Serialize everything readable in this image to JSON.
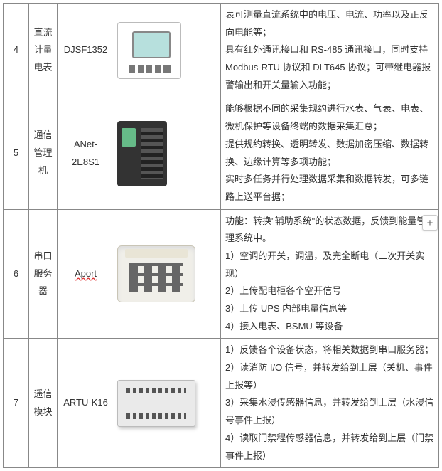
{
  "rows": [
    {
      "num": "4",
      "name": "直流计量电表",
      "model": "DJSF1352",
      "model_spellcheck": false,
      "desc": "表可测量直流系统中的电压、电流、功率以及正反向电能等；\n具有红外通讯接口和 RS-485 通讯接口，同时支持 Modbus-RTU 协议和 DLT645 协议；可带继电器报警输出和开关量输入功能；"
    },
    {
      "num": "5",
      "name": "通信管理机",
      "model": "ANet-2E8S1",
      "model_spellcheck": false,
      "desc": "能够根据不同的采集规约进行水表、气表、电表、微机保护等设备终端的数据采集汇总；\n提供规约转换、透明转发、数据加密压缩、数据转换、边缘计算等多项功能；\n实时多任务并行处理数据采集和数据转发，可多链路上送平台据；"
    },
    {
      "num": "6",
      "name": "串口服务器",
      "model": "Aport",
      "model_spellcheck": true,
      "desc": "功能：转换\"辅助系统\"的状态数据，反馈到能量管理系统中。\n1）空调的开关，调温，及完全断电（二次开关实现）\n2）上传配电柜各个空开信号\n3）上传 UPS 内部电量信息等\n4）接入电表、BSMU 等设备"
    },
    {
      "num": "7",
      "name": "遥信模块",
      "model": "ARTU-K16",
      "model_spellcheck": false,
      "desc": "1）反馈各个设备状态，将相关数据到串口服务器；\n2）读消防 I/O 信号，并转发给到上层（关机、事件上报等）\n3）采集水浸传感器信息，并转发给到上层（水浸信号事件上报）\n4）读取门禁程传感器信息，并转发给到上层（门禁事件上报）"
    }
  ],
  "device_icons": [
    "dev-din",
    "dev-box",
    "dev-grid",
    "dev-module"
  ],
  "add_button_label": "+"
}
